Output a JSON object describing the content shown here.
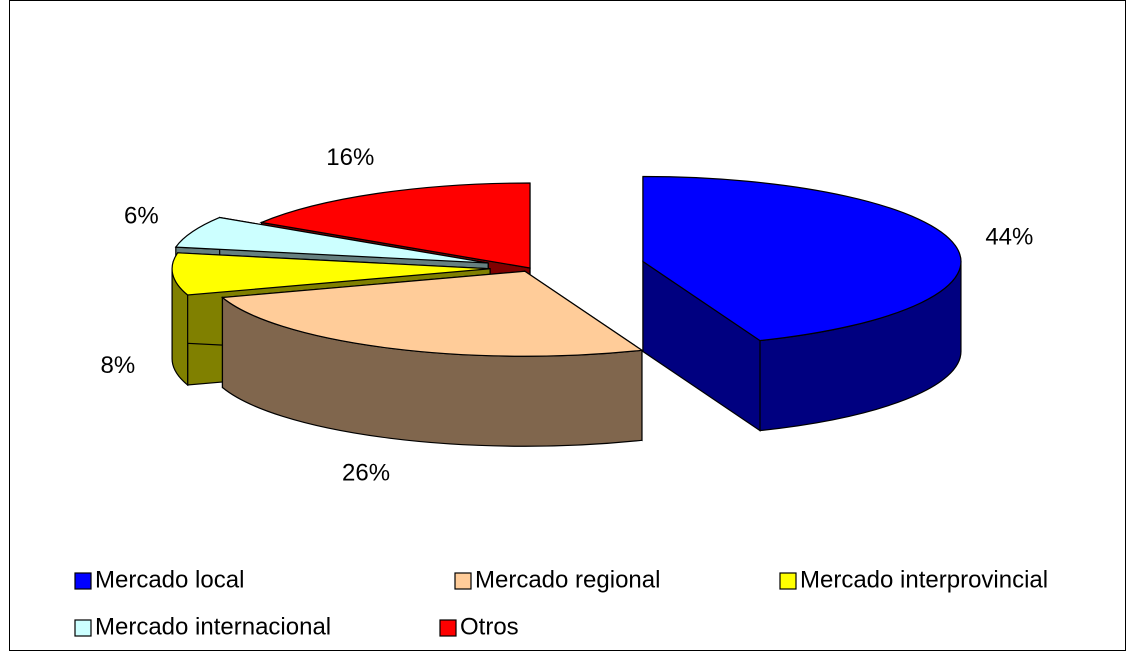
{
  "chart_data": {
    "type": "pie3d",
    "categories": [
      "Mercado local",
      "Mercado regional",
      "Mercado interprovincial",
      "Mercado internacional",
      "Otros"
    ],
    "values": [
      44,
      26,
      8,
      6,
      16
    ],
    "value_labels": [
      "44%",
      "26%",
      "8%",
      "6%",
      "16%"
    ],
    "colors": [
      "#0000ff",
      "#ffcc99",
      "#ffff00",
      "#ccffff",
      "#ff0000"
    ],
    "legend": "bottom"
  }
}
